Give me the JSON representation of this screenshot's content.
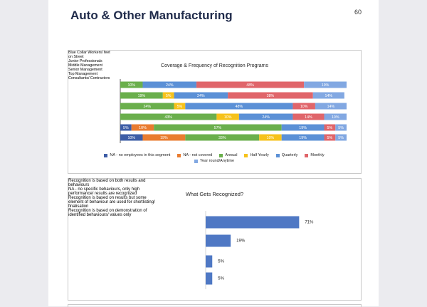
{
  "page": {
    "title": "Auto & Other Manufacturing",
    "page_number": 60
  },
  "chart_data": [
    {
      "type": "stacked-bar",
      "orientation": "horizontal",
      "title": "Coverage & Frequency of Recognition Programs",
      "categories": [
        "Blue Collar Workers/ feet on Street",
        "Junior Professionals",
        "Middle Management",
        "Senior Management",
        "Top Management",
        "Consultants/ Contractors"
      ],
      "xlim": [
        0,
        101
      ],
      "legend": "bottom",
      "series": [
        {
          "name": "NA - no employees in this segment",
          "color": "#3d5da6",
          "values": [
            null,
            null,
            null,
            null,
            5,
            10
          ],
          "value_labels": [
            null,
            null,
            null,
            null,
            "5%",
            "10%"
          ]
        },
        {
          "name": "NA - not covered",
          "color": "#e97c30",
          "values": [
            null,
            null,
            null,
            null,
            10,
            19
          ],
          "value_labels": [
            null,
            null,
            null,
            null,
            "10%",
            "19%"
          ]
        },
        {
          "name": "Annual",
          "color": "#6aaf4c",
          "values": [
            10,
            19,
            24,
            43,
            57,
            33
          ],
          "value_labels": [
            "10%",
            "19%",
            "24%",
            "43%",
            "57%",
            "33%"
          ]
        },
        {
          "name": "Half Yearly",
          "color": "#f6c21b",
          "values": [
            null,
            5,
            5,
            10,
            null,
            10
          ],
          "value_labels": [
            null,
            "5%",
            "5%",
            "10%",
            null,
            "10%"
          ]
        },
        {
          "name": "Quarterly",
          "color": "#5b90d6",
          "values": [
            24,
            24,
            48,
            24,
            19,
            19
          ],
          "value_labels": [
            "24%",
            "24%",
            "48%",
            "24%",
            "19%",
            "19%"
          ]
        },
        {
          "name": "Monthly",
          "color": "#e0656a",
          "values": [
            48,
            38,
            10,
            14,
            5,
            5
          ],
          "value_labels": [
            "48%",
            "38%",
            "10%",
            "14%",
            "5%",
            "5%"
          ]
        },
        {
          "name": "Year round/Anytime",
          "color": "#82a8e2",
          "values": [
            19,
            14,
            14,
            10,
            5,
            5
          ],
          "value_labels": [
            "19%",
            "14%",
            "14%",
            "10%",
            "5%",
            "5%"
          ]
        }
      ]
    },
    {
      "type": "bar",
      "orientation": "horizontal",
      "title": "What Gets Recognized?",
      "categories": [
        "Recognition is based on both results and behaviours",
        "NA - no specific behaviours, only high performance/ results are recognized",
        "Recognition is based on results but some element of behaviour are used for shortlisting/ finalisation",
        "Recognition is based on demonstration of identified behaviours/ values only"
      ],
      "values": [
        71,
        19,
        5,
        5
      ],
      "value_labels": [
        "71%",
        "19%",
        "5%",
        "5%"
      ],
      "color": "#4f78c4",
      "xlim": [
        0,
        100
      ]
    }
  ]
}
